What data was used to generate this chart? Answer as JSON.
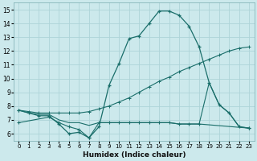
{
  "xlabel": "Humidex (Indice chaleur)",
  "xlim": [
    -0.5,
    23.5
  ],
  "ylim": [
    5.5,
    15.5
  ],
  "yticks": [
    6,
    7,
    8,
    9,
    10,
    11,
    12,
    13,
    14,
    15
  ],
  "xticks": [
    0,
    1,
    2,
    3,
    4,
    5,
    6,
    7,
    8,
    9,
    10,
    11,
    12,
    13,
    14,
    15,
    16,
    17,
    18,
    19,
    20,
    21,
    22,
    23
  ],
  "bg_color": "#cce9ec",
  "line_color": "#1a6e6a",
  "grid_color": "#aed4d8",
  "line1_x": [
    0,
    1,
    2,
    3,
    4,
    5,
    6,
    7,
    8,
    9,
    10,
    11,
    12,
    13,
    14,
    15,
    16,
    17,
    18,
    19,
    20,
    21,
    22,
    23
  ],
  "line1_y": [
    7.7,
    7.5,
    7.3,
    7.3,
    6.7,
    6.0,
    6.1,
    5.7,
    6.5,
    9.5,
    11.1,
    12.9,
    13.1,
    14.0,
    14.9,
    14.9,
    14.6,
    13.8,
    12.3,
    9.7,
    8.1,
    7.5,
    6.5,
    6.4
  ],
  "line2_x": [
    0,
    1,
    2,
    3,
    4,
    5,
    6,
    7,
    8,
    9,
    10,
    11,
    12,
    13,
    14,
    15,
    16,
    17,
    18,
    19,
    20,
    21,
    22,
    23
  ],
  "line2_y": [
    7.7,
    7.6,
    7.5,
    7.5,
    7.5,
    7.5,
    7.5,
    7.6,
    7.8,
    8.0,
    8.3,
    8.6,
    9.0,
    9.4,
    9.8,
    10.1,
    10.5,
    10.8,
    11.1,
    11.4,
    11.7,
    12.0,
    12.2,
    12.3
  ],
  "line3_x": [
    0,
    1,
    2,
    3,
    4,
    5,
    6,
    7,
    8,
    9,
    10,
    11,
    12,
    13,
    14,
    15,
    16,
    17,
    18,
    19,
    20,
    21,
    22,
    23
  ],
  "line3_y": [
    7.7,
    7.5,
    7.4,
    7.4,
    7.0,
    6.8,
    6.8,
    6.6,
    6.8,
    6.8,
    6.8,
    6.8,
    6.8,
    6.8,
    6.8,
    6.8,
    6.7,
    6.7,
    6.7,
    9.7,
    8.1,
    7.5,
    6.5,
    6.4
  ],
  "line4_x": [
    0,
    3,
    4,
    5,
    6,
    7,
    8,
    9,
    10,
    11,
    12,
    13,
    14,
    15,
    16,
    17,
    18,
    23
  ],
  "line4_y": [
    6.8,
    7.2,
    6.8,
    6.5,
    6.3,
    5.7,
    6.8,
    6.8,
    6.8,
    6.8,
    6.8,
    6.8,
    6.8,
    6.8,
    6.7,
    6.7,
    6.7,
    6.4
  ]
}
